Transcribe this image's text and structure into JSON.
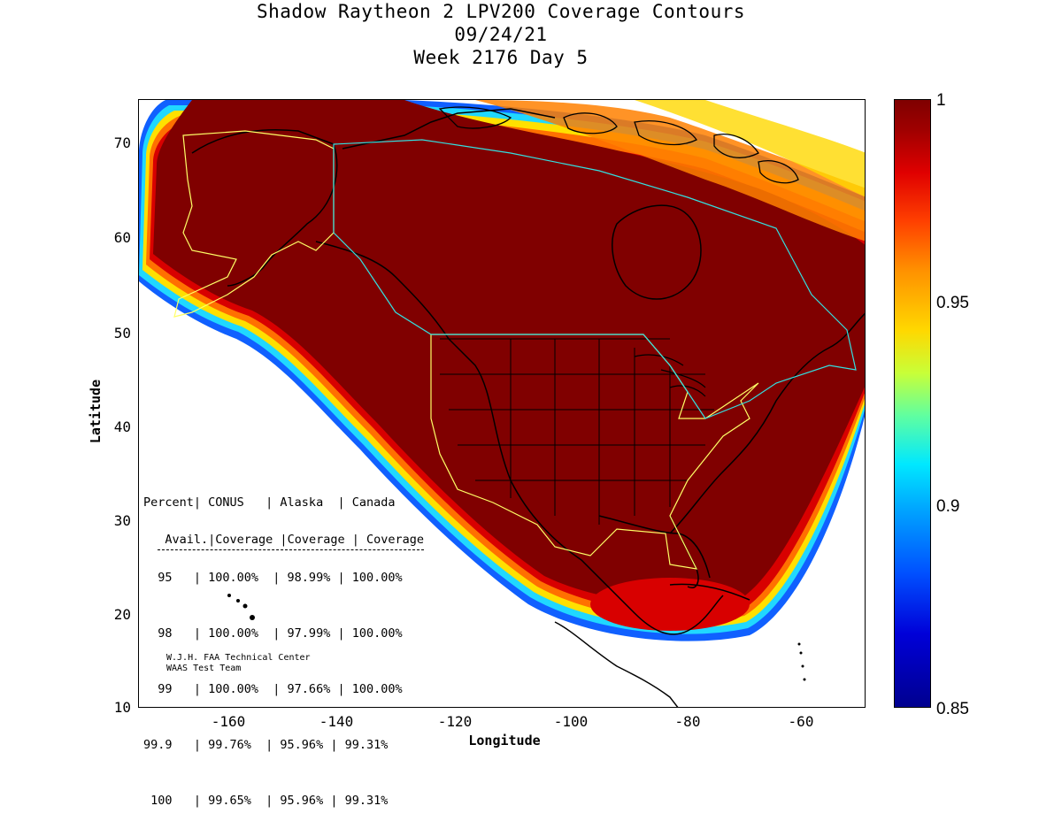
{
  "title": {
    "line1": "Shadow Raytheon 2 LPV200 Coverage Contours",
    "line2": "09/24/21",
    "line3": "Week 2176 Day 5"
  },
  "axes": {
    "xlabel": "Longitude",
    "ylabel": "Latitude",
    "x_ticks": [
      "-160",
      "-140",
      "-120",
      "-100",
      "-80",
      "-60"
    ],
    "y_ticks": [
      "70",
      "60",
      "50",
      "40",
      "30",
      "20",
      "10"
    ],
    "xlim": [
      -175,
      -50
    ],
    "ylim": [
      10,
      75
    ]
  },
  "colorbar": {
    "ticks": [
      "1",
      "0.95",
      "0.9",
      "0.85"
    ],
    "range": [
      0.85,
      1.0
    ],
    "colormap": "jet"
  },
  "stats": {
    "header1": "Percent| CONUS   | Alaska  | Canada",
    "header2": " Avail.|Coverage |Coverage | Coverage",
    "rows": [
      "  95   | 100.00%  | 98.99% | 100.00%",
      "  98   | 100.00%  | 97.99% | 100.00%",
      "  99   | 100.00%  | 97.66% | 100.00%",
      "99.9   | 99.76%  | 95.96% | 99.31%",
      " 100   | 99.65%  | 95.96% | 99.31%"
    ]
  },
  "credit": {
    "line1": "W.J.H. FAA Technical Center",
    "line2": "WAAS Test Team"
  },
  "colors": {
    "core": "#800000",
    "boundary_conus": "#ffff66",
    "boundary_canada": "#33e0e0"
  }
}
